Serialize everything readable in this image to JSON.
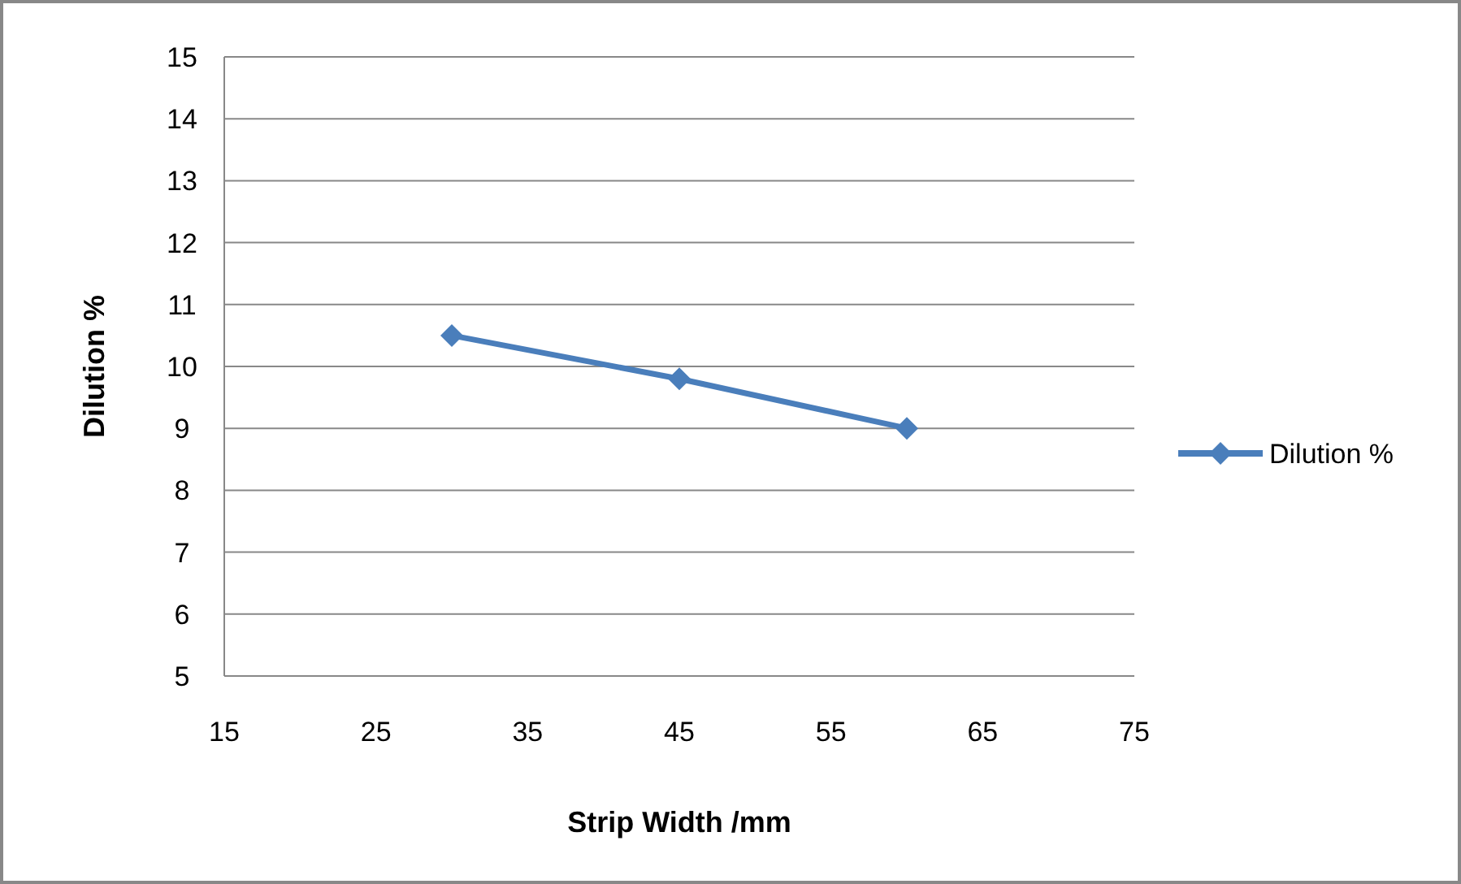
{
  "chart_data": {
    "type": "line",
    "xlabel": "Strip Width /mm",
    "ylabel": "Dilution %",
    "x": [
      30,
      45,
      60
    ],
    "series": [
      {
        "name": "Dilution %",
        "color": "#4a7ebb",
        "values": [
          10.5,
          9.8,
          9.0
        ]
      }
    ],
    "xlim": [
      15,
      75
    ],
    "xticks": [
      15,
      25,
      35,
      45,
      55,
      65,
      75
    ],
    "ylim": [
      5,
      15
    ],
    "yticks": [
      5,
      6,
      7,
      8,
      9,
      10,
      11,
      12,
      13,
      14,
      15
    ],
    "grid": "y",
    "legend": "right",
    "marker": "diamond",
    "line_style": "solid"
  }
}
